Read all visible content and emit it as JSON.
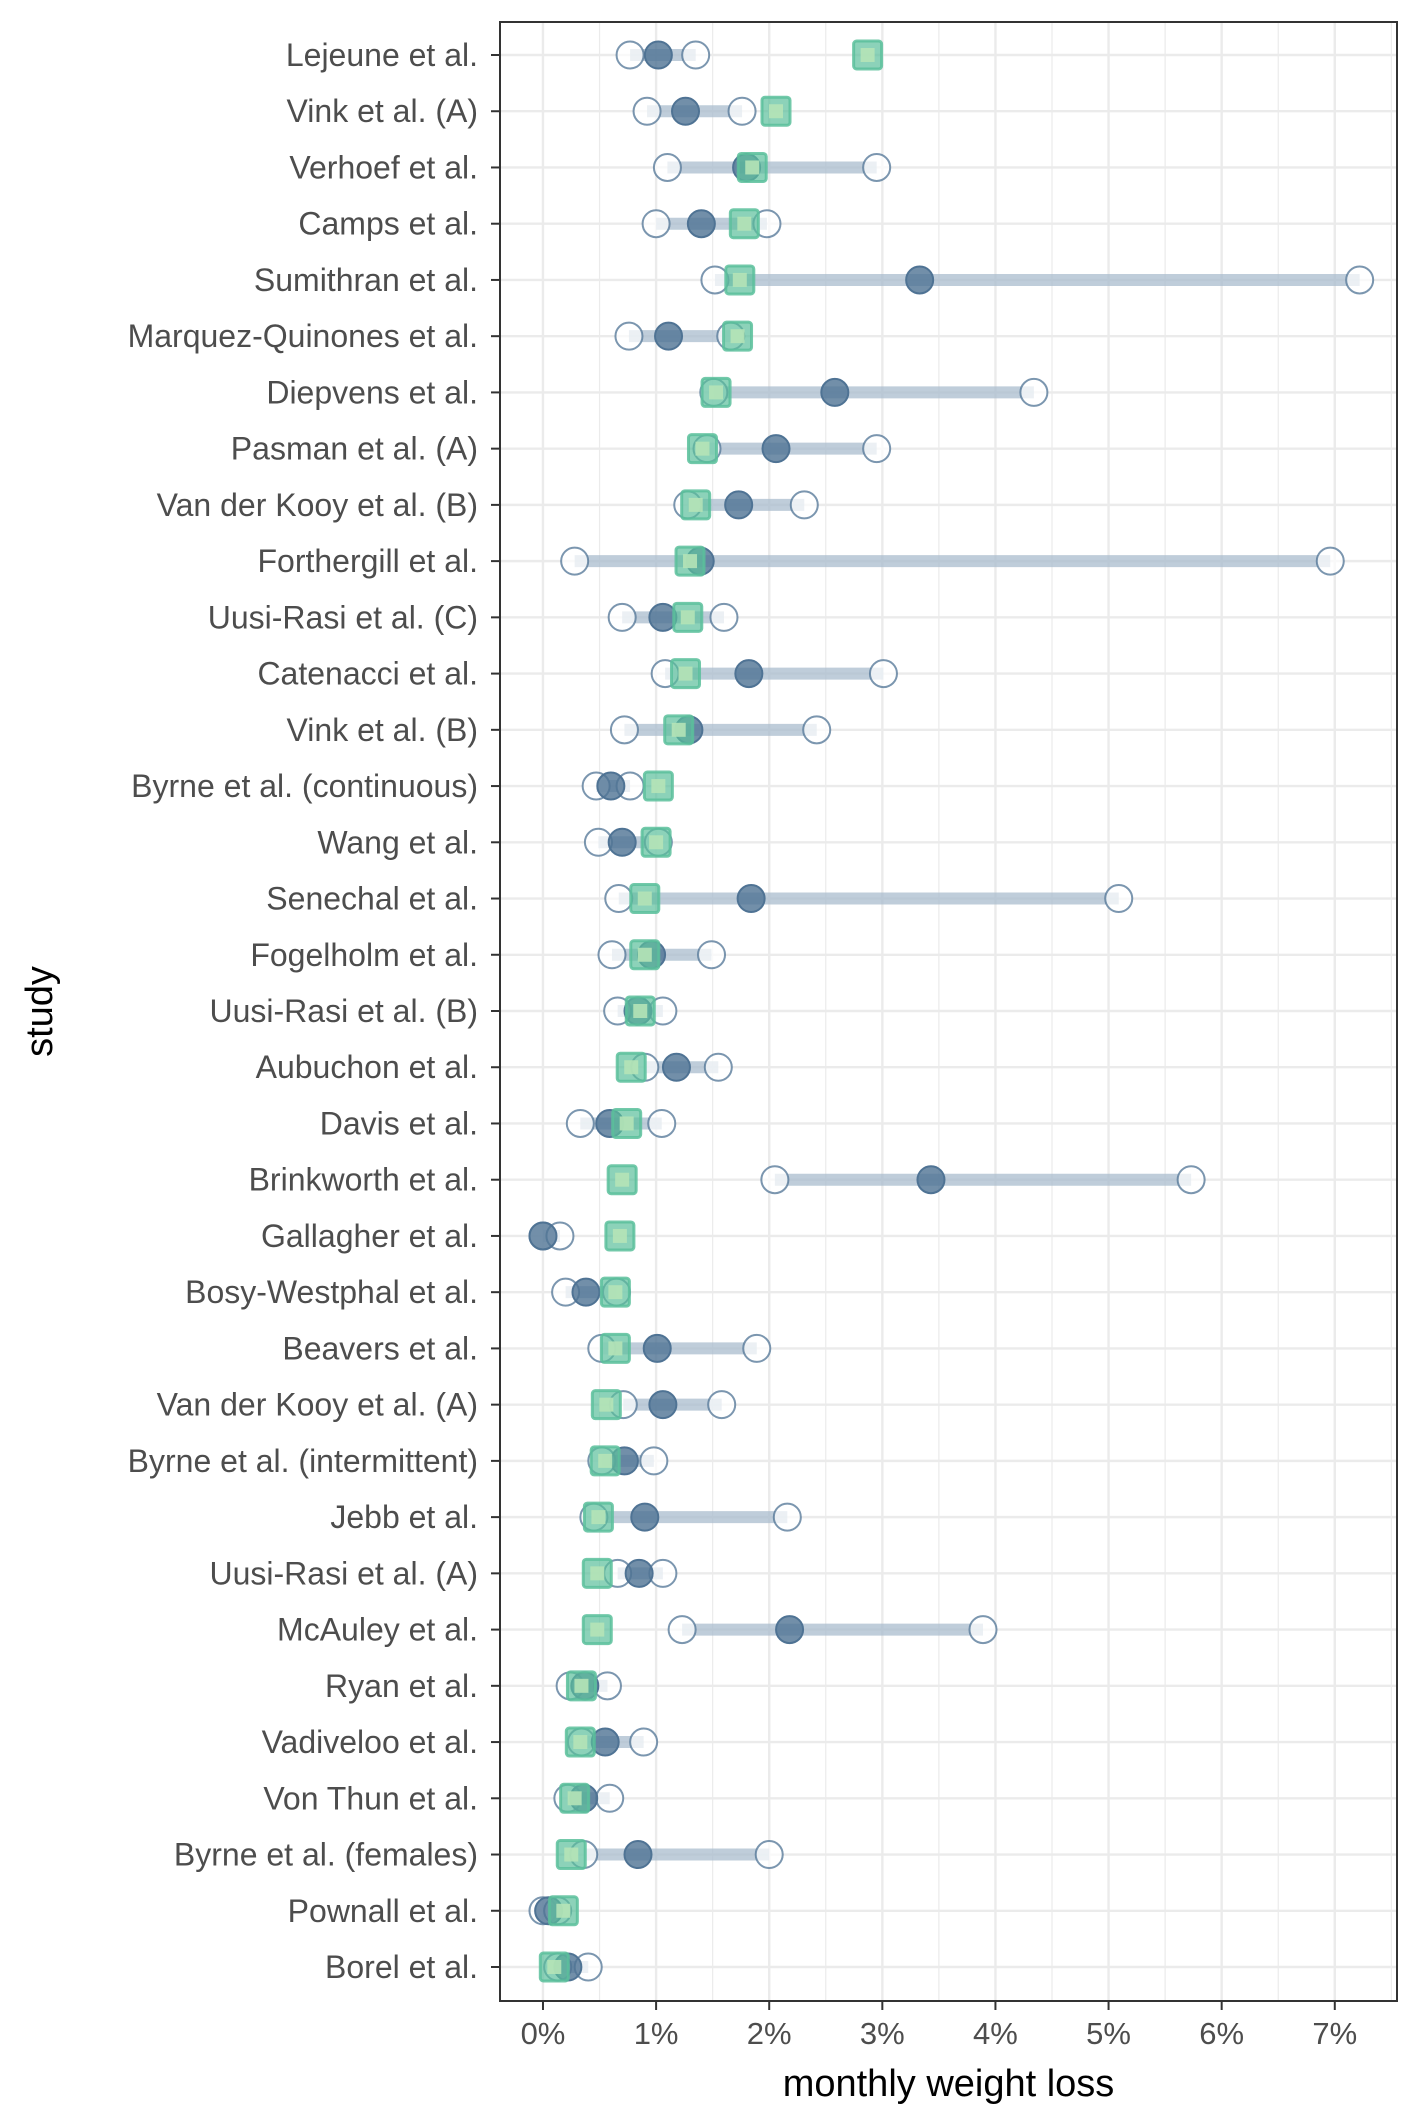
{
  "chart_data": {
    "type": "dot-range",
    "xlabel": "monthly weight loss",
    "ylabel": "study",
    "xlim": [
      -0.38,
      7.55
    ],
    "x_ticks": [
      0,
      1,
      2,
      3,
      4,
      5,
      6,
      7
    ],
    "x_tick_labels": [
      "0%",
      "1%",
      "2%",
      "3%",
      "4%",
      "5%",
      "6%",
      "7%"
    ],
    "grid": true,
    "legend": "none",
    "colors": {
      "observed": "#4f7394",
      "range": "#a9bccd",
      "estimate": "#5bbf9b",
      "estimate_center": "#b5e3b7",
      "grid": "#ebebeb",
      "panel_border": "#333333"
    },
    "studies": [
      {
        "name": "Lejeune et al.",
        "lo": 0.77,
        "hi": 1.35,
        "mean": 1.02,
        "estimate": 2.87
      },
      {
        "name": "Vink et al. (A)",
        "lo": 0.92,
        "hi": 1.76,
        "mean": 1.26,
        "estimate": 2.06
      },
      {
        "name": "Verhoef et al.",
        "lo": 1.1,
        "hi": 2.95,
        "mean": 1.8,
        "estimate": 1.85
      },
      {
        "name": "Camps et al.",
        "lo": 1.0,
        "hi": 1.98,
        "mean": 1.4,
        "estimate": 1.78
      },
      {
        "name": "Sumithran et al.",
        "lo": 1.52,
        "hi": 7.22,
        "mean": 3.33,
        "estimate": 1.74
      },
      {
        "name": "Marquez-Quinones et al.",
        "lo": 0.76,
        "hi": 1.66,
        "mean": 1.11,
        "estimate": 1.72
      },
      {
        "name": "Diepvens et al.",
        "lo": 1.51,
        "hi": 4.34,
        "mean": 2.58,
        "estimate": 1.53
      },
      {
        "name": "Pasman et al. (A)",
        "lo": 1.45,
        "hi": 2.95,
        "mean": 2.06,
        "estimate": 1.41
      },
      {
        "name": "Van der Kooy et al. (B)",
        "lo": 1.28,
        "hi": 2.31,
        "mean": 1.73,
        "estimate": 1.35
      },
      {
        "name": "Forthergill et al.",
        "lo": 0.28,
        "hi": 6.96,
        "mean": 1.39,
        "estimate": 1.3
      },
      {
        "name": "Uusi-Rasi et al. (C)",
        "lo": 0.7,
        "hi": 1.6,
        "mean": 1.06,
        "estimate": 1.28
      },
      {
        "name": "Catenacci et al.",
        "lo": 1.08,
        "hi": 3.01,
        "mean": 1.82,
        "estimate": 1.26
      },
      {
        "name": "Vink et al. (B)",
        "lo": 0.72,
        "hi": 2.42,
        "mean": 1.29,
        "estimate": 1.2
      },
      {
        "name": "Byrne et al. (continuous)",
        "lo": 0.47,
        "hi": 0.77,
        "mean": 0.6,
        "estimate": 1.02
      },
      {
        "name": "Wang et al.",
        "lo": 0.49,
        "hi": 1.02,
        "mean": 0.7,
        "estimate": 1.0
      },
      {
        "name": "Senechal et al.",
        "lo": 0.67,
        "hi": 5.09,
        "mean": 1.84,
        "estimate": 0.9
      },
      {
        "name": "Fogelholm et al.",
        "lo": 0.61,
        "hi": 1.49,
        "mean": 0.96,
        "estimate": 0.9
      },
      {
        "name": "Uusi-Rasi et al. (B)",
        "lo": 0.66,
        "hi": 1.06,
        "mean": 0.84,
        "estimate": 0.86
      },
      {
        "name": "Aubuchon et al.",
        "lo": 0.9,
        "hi": 1.55,
        "mean": 1.18,
        "estimate": 0.78
      },
      {
        "name": "Davis et al.",
        "lo": 0.33,
        "hi": 1.05,
        "mean": 0.59,
        "estimate": 0.74
      },
      {
        "name": "Brinkworth et al.",
        "lo": 2.05,
        "hi": 5.73,
        "mean": 3.43,
        "estimate": 0.7
      },
      {
        "name": "Gallagher et al.",
        "lo": 0.0,
        "hi": 0.15,
        "mean": 0.0,
        "estimate": 0.68
      },
      {
        "name": "Bosy-Westphal et al.",
        "lo": 0.2,
        "hi": 0.65,
        "mean": 0.38,
        "estimate": 0.64
      },
      {
        "name": "Beavers et al.",
        "lo": 0.52,
        "hi": 1.89,
        "mean": 1.01,
        "estimate": 0.64
      },
      {
        "name": "Van der Kooy et al. (A)",
        "lo": 0.71,
        "hi": 1.58,
        "mean": 1.06,
        "estimate": 0.56
      },
      {
        "name": "Byrne et al. (intermittent)",
        "lo": 0.52,
        "hi": 0.98,
        "mean": 0.72,
        "estimate": 0.55
      },
      {
        "name": "Jebb et al.",
        "lo": 0.45,
        "hi": 2.16,
        "mean": 0.9,
        "estimate": 0.49
      },
      {
        "name": "Uusi-Rasi et al. (A)",
        "lo": 0.66,
        "hi": 1.06,
        "mean": 0.85,
        "estimate": 0.48
      },
      {
        "name": "McAuley et al.",
        "lo": 1.23,
        "hi": 3.89,
        "mean": 2.18,
        "estimate": 0.48
      },
      {
        "name": "Ryan et al.",
        "lo": 0.24,
        "hi": 0.57,
        "mean": 0.37,
        "estimate": 0.34
      },
      {
        "name": "Vadiveloo et al.",
        "lo": 0.34,
        "hi": 0.89,
        "mean": 0.55,
        "estimate": 0.33
      },
      {
        "name": "Von Thun et al.",
        "lo": 0.22,
        "hi": 0.59,
        "mean": 0.36,
        "estimate": 0.28
      },
      {
        "name": "Byrne et al. (females)",
        "lo": 0.36,
        "hi": 2.0,
        "mean": 0.84,
        "estimate": 0.25
      },
      {
        "name": "Pownall et al.",
        "lo": 0.0,
        "hi": 0.13,
        "mean": 0.05,
        "estimate": 0.18
      },
      {
        "name": "Borel et al.",
        "lo": 0.13,
        "hi": 0.4,
        "mean": 0.22,
        "estimate": 0.1
      }
    ]
  }
}
